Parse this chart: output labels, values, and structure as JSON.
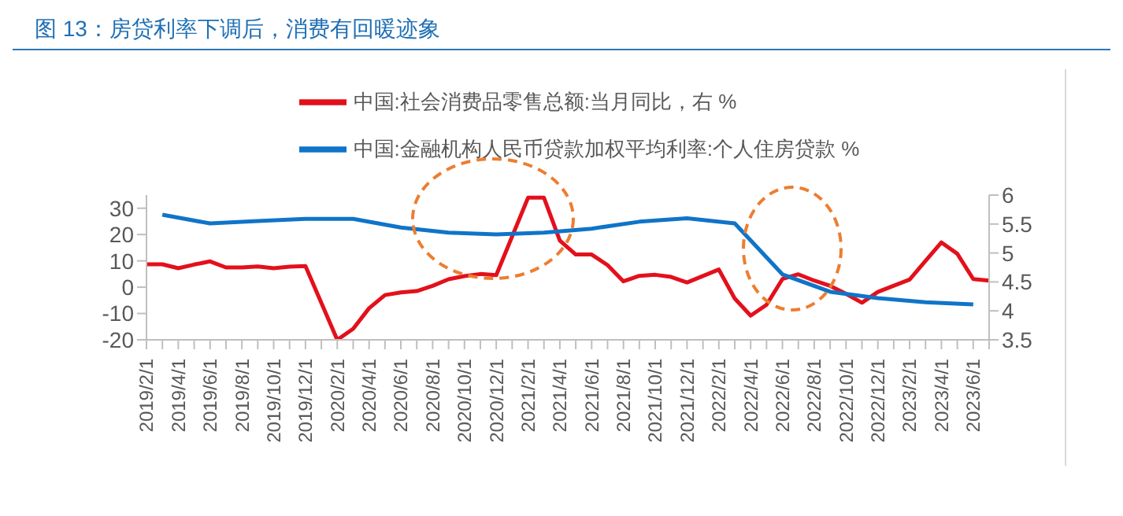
{
  "chart_data": {
    "type": "line",
    "title": "图 13：房贷利率下调后，消费有回暖迹象",
    "categories": [
      "2019/2/1",
      null,
      "2019/4/1",
      null,
      "2019/6/1",
      null,
      "2019/8/1",
      null,
      "2019/10/1",
      null,
      "2019/12/1",
      null,
      "2020/2/1",
      null,
      "2020/4/1",
      null,
      "2020/6/1",
      null,
      "2020/8/1",
      null,
      "2020/10/1",
      null,
      "2020/12/1",
      null,
      "2021/2/1",
      null,
      "2021/4/1",
      null,
      "2021/6/1",
      null,
      "2021/8/1",
      null,
      "2021/10/1",
      null,
      "2021/12/1",
      null,
      "2022/2/1",
      null,
      "2022/4/1",
      null,
      "2022/6/1",
      null,
      "2022/8/1",
      null,
      "2022/10/1",
      null,
      "2022/12/1",
      null,
      "2023/2/1",
      null,
      "2023/4/1",
      null,
      "2023/6/1",
      null
    ],
    "series": [
      {
        "name": "中国:社会消费品零售总额:当月同比，右 %",
        "color": "#e3101c",
        "values": [
          8.7,
          8.7,
          7.2,
          8.6,
          9.8,
          7.5,
          7.5,
          7.9,
          7.2,
          7.8,
          8.0,
          null,
          -20,
          -15.8,
          -8,
          -3,
          -2,
          -1.5,
          0.5,
          3,
          4.2,
          5,
          4.6,
          null,
          34,
          34,
          17.7,
          12.4,
          12.4,
          8.4,
          2.2,
          4.3,
          4.7,
          3.9,
          1.8,
          null,
          6.7,
          -4.3,
          -10.8,
          -6.7,
          3.1,
          4.9,
          2.5,
          0.5,
          -2.5,
          -5.9,
          -1.8,
          null,
          2.9,
          10,
          17,
          12.7,
          3.1,
          2.5
        ]
      },
      {
        "name": "中国:金融机构人民币贷款加权平均利率:个人住房贷款 %",
        "color": "#1074c8",
        "axis": "y2",
        "values": [
          null,
          5.66,
          null,
          null,
          5.51,
          null,
          null,
          5.55,
          null,
          null,
          5.59,
          null,
          null,
          5.59,
          null,
          null,
          5.44,
          null,
          null,
          5.35,
          null,
          null,
          5.32,
          null,
          null,
          5.35,
          null,
          null,
          5.42,
          null,
          null,
          5.54,
          null,
          null,
          5.6,
          null,
          null,
          5.51,
          null,
          null,
          4.63,
          null,
          null,
          4.33,
          null,
          null,
          4.22,
          null,
          null,
          4.15,
          null,
          null,
          4.11,
          null
        ]
      }
    ],
    "ylim": [
      -20,
      35
    ],
    "yticks": [
      -20,
      -10,
      0,
      10,
      20,
      30
    ],
    "y2lim": [
      3.5,
      6
    ],
    "y2ticks": [
      3.5,
      4,
      4.5,
      5,
      5.5,
      6
    ],
    "legend": "top",
    "grid": false,
    "marker": "none",
    "line_style": "solid"
  }
}
